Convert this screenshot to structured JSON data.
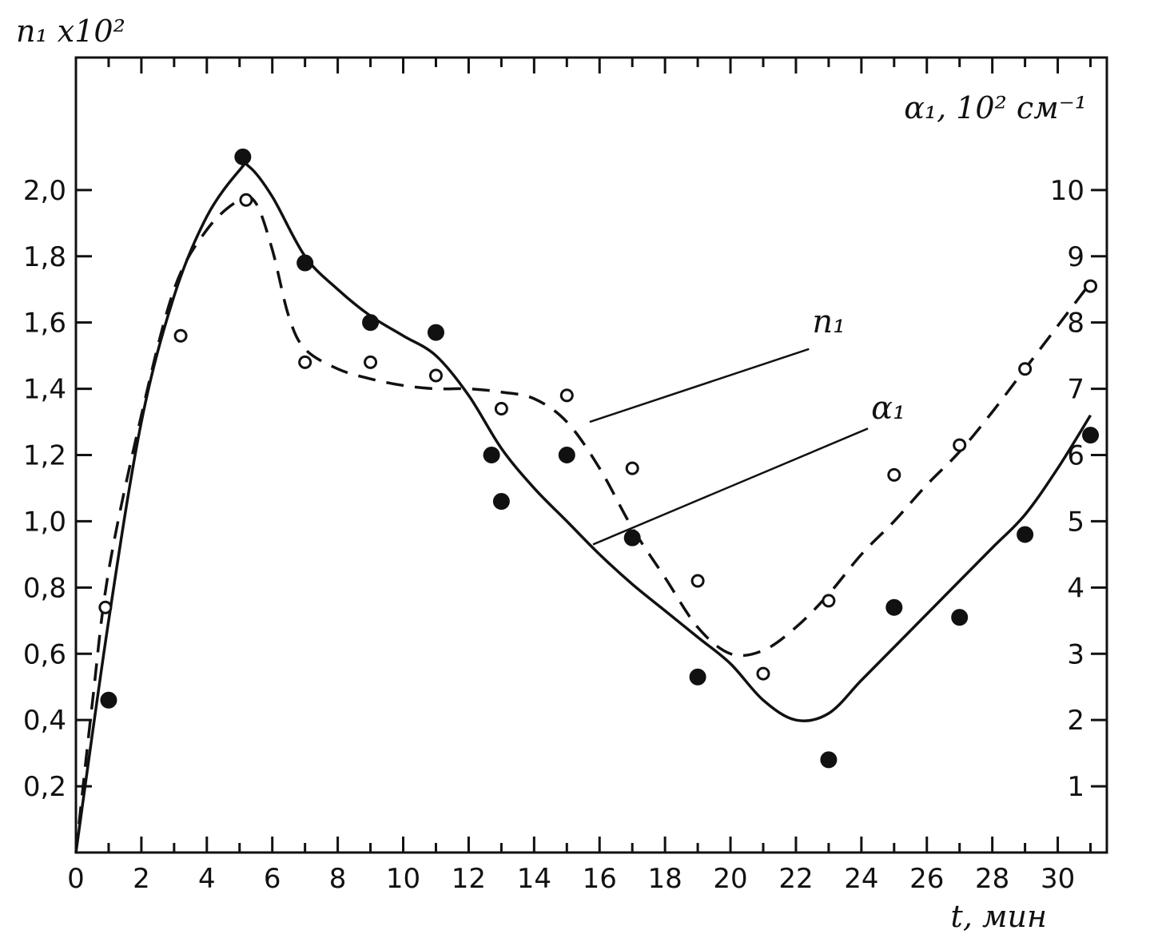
{
  "chart_data": {
    "type": "line",
    "xlabel": "t, мин",
    "ylabel_left": "n₁ x10²",
    "ylabel_right": "α₁, 10² см⁻¹",
    "xlim": [
      0,
      31.5
    ],
    "ylim_left": [
      0,
      2.4
    ],
    "ylim_right": [
      0,
      12
    ],
    "x_ticks": [
      0,
      2,
      4,
      6,
      8,
      10,
      12,
      14,
      16,
      18,
      20,
      22,
      24,
      26,
      28,
      30
    ],
    "y_left_ticks": [
      "0,2",
      "0,4",
      "0,6",
      "0,8",
      "1,0",
      "1,2",
      "1,4",
      "1,6",
      "1,8",
      "2,0"
    ],
    "y_right_ticks": [
      "1",
      "2",
      "3",
      "4",
      "5",
      "6",
      "7",
      "8",
      "9",
      "10"
    ],
    "grid": false,
    "series": [
      {
        "name": "n₁",
        "axis": "left",
        "style": "dashed-line-open-circles",
        "line": {
          "x": [
            0,
            0.5,
            1,
            2,
            3,
            4,
            5,
            5.5,
            6,
            6.5,
            7,
            8,
            9,
            10,
            11,
            12,
            13,
            14,
            15,
            16,
            17,
            18,
            19,
            20,
            21,
            22,
            23,
            24,
            25,
            26,
            27,
            28,
            29,
            30,
            31
          ],
          "y": [
            0,
            0.45,
            0.85,
            1.32,
            1.7,
            1.88,
            1.97,
            1.96,
            1.82,
            1.62,
            1.52,
            1.46,
            1.43,
            1.41,
            1.4,
            1.4,
            1.39,
            1.37,
            1.3,
            1.16,
            0.98,
            0.83,
            0.68,
            0.6,
            0.61,
            0.68,
            0.78,
            0.9,
            1.0,
            1.11,
            1.21,
            1.33,
            1.46,
            1.59,
            1.72
          ]
        },
        "points": {
          "x": [
            0.9,
            3.2,
            5.2,
            7.0,
            9.0,
            11.0,
            13.0,
            15.0,
            17.0,
            19.0,
            21.0,
            23.0,
            25.0,
            27.0,
            29.0,
            31.0
          ],
          "y": [
            0.74,
            1.56,
            1.97,
            1.48,
            1.48,
            1.44,
            1.34,
            1.38,
            1.16,
            0.82,
            0.54,
            0.76,
            1.14,
            1.23,
            1.46,
            1.71
          ]
        }
      },
      {
        "name": "α₁",
        "axis": "right",
        "style": "solid-line-filled-circles",
        "line": {
          "x": [
            0,
            1,
            2,
            3,
            4,
            5,
            5.3,
            6,
            7,
            8,
            9,
            10,
            11,
            12,
            13,
            14,
            15,
            16,
            17,
            18,
            19,
            20,
            21,
            22,
            23,
            24,
            25,
            26,
            27,
            28,
            29,
            30,
            31
          ],
          "y": [
            0,
            3.5,
            6.5,
            8.4,
            9.6,
            10.3,
            10.35,
            9.9,
            9.0,
            8.5,
            8.1,
            7.8,
            7.5,
            6.9,
            6.1,
            5.5,
            5.0,
            4.5,
            4.05,
            3.65,
            3.25,
            2.85,
            2.3,
            2.0,
            2.1,
            2.6,
            3.1,
            3.6,
            4.1,
            4.6,
            5.1,
            5.8,
            6.6
          ]
        },
        "points": {
          "x": [
            1.0,
            5.1,
            7.0,
            9.0,
            11.0,
            12.7,
            13.0,
            15.0,
            17.0,
            19.0,
            23.0,
            25.0,
            27.0,
            29.0,
            31.0
          ],
          "y": [
            2.3,
            10.5,
            8.9,
            8.0,
            7.85,
            6.0,
            5.3,
            6.0,
            4.75,
            2.65,
            1.4,
            3.7,
            3.55,
            4.8,
            6.3
          ]
        }
      }
    ]
  }
}
